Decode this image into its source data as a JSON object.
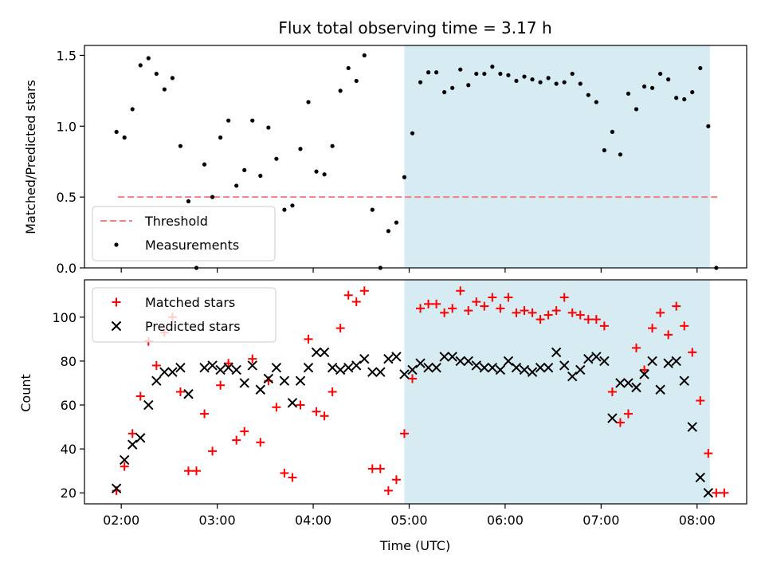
{
  "chart_data": [
    {
      "type": "scatter",
      "title": "Flux total observing time = 3.17 h",
      "xlabel": "",
      "ylabel": "Matched/Predicted stars",
      "ylim": [
        0,
        1.57
      ],
      "yticks": [
        0.0,
        0.5,
        1.0,
        1.5
      ],
      "ytick_labels": [
        "0.0",
        "0.5",
        "1.0",
        "1.5"
      ],
      "shaded_span": {
        "start": "04:57",
        "end": "08:08",
        "color": "#add8e6"
      },
      "threshold": {
        "name": "Threshold",
        "value": 0.5,
        "start": "01:58",
        "end": "08:13",
        "color": "#f08080"
      },
      "legend_location": "lower-left",
      "series": [
        {
          "name": "Measurements",
          "color": "#000000",
          "marker": "dot",
          "points": [
            [
              "01:57",
              0.96
            ],
            [
              "02:02",
              0.92
            ],
            [
              "02:07",
              1.12
            ],
            [
              "02:12",
              1.43
            ],
            [
              "02:17",
              1.48
            ],
            [
              "02:22",
              1.37
            ],
            [
              "02:27",
              1.26
            ],
            [
              "02:32",
              1.34
            ],
            [
              "02:37",
              0.86
            ],
            [
              "02:42",
              0.47
            ],
            [
              "02:47",
              0.0
            ],
            [
              "02:52",
              0.73
            ],
            [
              "02:57",
              0.5
            ],
            [
              "03:02",
              0.92
            ],
            [
              "03:07",
              1.04
            ],
            [
              "03:12",
              0.58
            ],
            [
              "03:17",
              0.69
            ],
            [
              "03:22",
              1.04
            ],
            [
              "03:27",
              0.65
            ],
            [
              "03:32",
              0.99
            ],
            [
              "03:37",
              0.77
            ],
            [
              "03:42",
              0.41
            ],
            [
              "03:47",
              0.44
            ],
            [
              "03:52",
              0.84
            ],
            [
              "03:57",
              1.17
            ],
            [
              "04:02",
              0.68
            ],
            [
              "04:07",
              0.66
            ],
            [
              "04:12",
              0.86
            ],
            [
              "04:17",
              1.25
            ],
            [
              "04:22",
              1.41
            ],
            [
              "04:27",
              1.32
            ],
            [
              "04:32",
              1.5
            ],
            [
              "04:37",
              0.41
            ],
            [
              "04:42",
              0.0
            ],
            [
              "04:47",
              0.26
            ],
            [
              "04:52",
              0.32
            ],
            [
              "04:57",
              0.64
            ],
            [
              "05:02",
              0.95
            ],
            [
              "05:07",
              1.31
            ],
            [
              "05:12",
              1.38
            ],
            [
              "05:17",
              1.38
            ],
            [
              "05:22",
              1.24
            ],
            [
              "05:27",
              1.27
            ],
            [
              "05:32",
              1.4
            ],
            [
              "05:37",
              1.29
            ],
            [
              "05:42",
              1.37
            ],
            [
              "05:47",
              1.37
            ],
            [
              "05:52",
              1.42
            ],
            [
              "05:57",
              1.37
            ],
            [
              "06:02",
              1.36
            ],
            [
              "06:07",
              1.32
            ],
            [
              "06:12",
              1.35
            ],
            [
              "06:17",
              1.33
            ],
            [
              "06:22",
              1.31
            ],
            [
              "06:27",
              1.34
            ],
            [
              "06:32",
              1.3
            ],
            [
              "06:37",
              1.31
            ],
            [
              "06:42",
              1.37
            ],
            [
              "06:47",
              1.3
            ],
            [
              "06:52",
              1.22
            ],
            [
              "06:57",
              1.17
            ],
            [
              "07:02",
              0.83
            ],
            [
              "07:07",
              0.96
            ],
            [
              "07:12",
              0.8
            ],
            [
              "07:17",
              1.23
            ],
            [
              "07:22",
              1.12
            ],
            [
              "07:27",
              1.28
            ],
            [
              "07:32",
              1.27
            ],
            [
              "07:37",
              1.37
            ],
            [
              "07:42",
              1.33
            ],
            [
              "07:47",
              1.2
            ],
            [
              "07:52",
              1.19
            ],
            [
              "07:57",
              1.24
            ],
            [
              "08:02",
              1.41
            ],
            [
              "08:07",
              1.0
            ],
            [
              "08:12",
              0.0
            ]
          ]
        }
      ]
    },
    {
      "type": "scatter",
      "title": "",
      "xlabel": "Time (UTC)",
      "ylabel": "Count",
      "ylim": [
        15,
        117
      ],
      "yticks": [
        20,
        40,
        60,
        80,
        100
      ],
      "ytick_labels": [
        "20",
        "40",
        "60",
        "80",
        "100"
      ],
      "xlim": [
        "01:37",
        "08:31"
      ],
      "xticks": [
        "02:00",
        "03:00",
        "04:00",
        "05:00",
        "06:00",
        "07:00",
        "08:00"
      ],
      "shaded_span": {
        "start": "04:57",
        "end": "08:08",
        "color": "#add8e6"
      },
      "legend_location": "upper-left",
      "series": [
        {
          "name": "Matched stars",
          "color": "#ff0000",
          "marker": "plus",
          "points": [
            [
              "01:57",
              21
            ],
            [
              "02:02",
              32
            ],
            [
              "02:07",
              47
            ],
            [
              "02:12",
              64
            ],
            [
              "02:17",
              89
            ],
            [
              "02:22",
              78
            ],
            [
              "02:27",
              93
            ],
            [
              "02:32",
              100
            ],
            [
              "02:37",
              66
            ],
            [
              "02:42",
              30
            ],
            [
              "02:47",
              30
            ],
            [
              "02:52",
              56
            ],
            [
              "02:57",
              39
            ],
            [
              "03:02",
              69
            ],
            [
              "03:07",
              79
            ],
            [
              "03:12",
              44
            ],
            [
              "03:17",
              48
            ],
            [
              "03:22",
              81
            ],
            [
              "03:27",
              43
            ],
            [
              "03:32",
              71
            ],
            [
              "03:37",
              59
            ],
            [
              "03:42",
              29
            ],
            [
              "03:47",
              27
            ],
            [
              "03:52",
              60
            ],
            [
              "03:57",
              90
            ],
            [
              "04:02",
              57
            ],
            [
              "04:07",
              55
            ],
            [
              "04:12",
              66
            ],
            [
              "04:17",
              95
            ],
            [
              "04:22",
              110
            ],
            [
              "04:27",
              107
            ],
            [
              "04:32",
              112
            ],
            [
              "04:37",
              31
            ],
            [
              "04:42",
              31
            ],
            [
              "04:47",
              21
            ],
            [
              "04:52",
              26
            ],
            [
              "04:57",
              47
            ],
            [
              "05:02",
              72
            ],
            [
              "05:07",
              104
            ],
            [
              "05:12",
              106
            ],
            [
              "05:17",
              106
            ],
            [
              "05:22",
              102
            ],
            [
              "05:27",
              104
            ],
            [
              "05:32",
              112
            ],
            [
              "05:37",
              103
            ],
            [
              "05:42",
              107
            ],
            [
              "05:47",
              105
            ],
            [
              "05:52",
              109
            ],
            [
              "05:57",
              104
            ],
            [
              "06:02",
              109
            ],
            [
              "06:07",
              102
            ],
            [
              "06:12",
              103
            ],
            [
              "06:17",
              102
            ],
            [
              "06:22",
              99
            ],
            [
              "06:27",
              101
            ],
            [
              "06:32",
              103
            ],
            [
              "06:37",
              109
            ],
            [
              "06:42",
              102
            ],
            [
              "06:47",
              101
            ],
            [
              "06:52",
              99
            ],
            [
              "06:57",
              99
            ],
            [
              "07:02",
              96
            ],
            [
              "07:07",
              66
            ],
            [
              "07:12",
              52
            ],
            [
              "07:17",
              56
            ],
            [
              "07:22",
              86
            ],
            [
              "07:27",
              76
            ],
            [
              "07:32",
              95
            ],
            [
              "07:37",
              102
            ],
            [
              "07:42",
              92
            ],
            [
              "07:47",
              105
            ],
            [
              "07:52",
              96
            ],
            [
              "07:57",
              84
            ],
            [
              "08:02",
              62
            ],
            [
              "08:07",
              38
            ],
            [
              "08:12",
              20
            ],
            [
              "08:17",
              20
            ]
          ]
        },
        {
          "name": "Predicted stars",
          "color": "#000000",
          "marker": "x",
          "points": [
            [
              "01:57",
              22
            ],
            [
              "02:02",
              35
            ],
            [
              "02:07",
              42
            ],
            [
              "02:12",
              45
            ],
            [
              "02:17",
              60
            ],
            [
              "02:22",
              71
            ],
            [
              "02:27",
              75
            ],
            [
              "02:32",
              75
            ],
            [
              "02:37",
              77
            ],
            [
              "02:42",
              65
            ],
            [
              "02:52",
              77
            ],
            [
              "02:57",
              78
            ],
            [
              "03:02",
              76
            ],
            [
              "03:07",
              77
            ],
            [
              "03:12",
              76
            ],
            [
              "03:17",
              70
            ],
            [
              "03:22",
              78
            ],
            [
              "03:27",
              67
            ],
            [
              "03:32",
              72
            ],
            [
              "03:37",
              77
            ],
            [
              "03:42",
              71
            ],
            [
              "03:47",
              61
            ],
            [
              "03:52",
              71
            ],
            [
              "03:57",
              77
            ],
            [
              "04:02",
              84
            ],
            [
              "04:07",
              84
            ],
            [
              "04:12",
              77
            ],
            [
              "04:17",
              76
            ],
            [
              "04:22",
              77
            ],
            [
              "04:27",
              78
            ],
            [
              "04:32",
              81
            ],
            [
              "04:37",
              75
            ],
            [
              "04:42",
              75
            ],
            [
              "04:47",
              81
            ],
            [
              "04:52",
              82
            ],
            [
              "04:57",
              74
            ],
            [
              "05:02",
              76
            ],
            [
              "05:07",
              79
            ],
            [
              "05:12",
              77
            ],
            [
              "05:17",
              77
            ],
            [
              "05:22",
              82
            ],
            [
              "05:27",
              82
            ],
            [
              "05:32",
              80
            ],
            [
              "05:37",
              80
            ],
            [
              "05:42",
              78
            ],
            [
              "05:47",
              77
            ],
            [
              "05:52",
              77
            ],
            [
              "05:57",
              76
            ],
            [
              "06:02",
              80
            ],
            [
              "06:07",
              77
            ],
            [
              "06:12",
              76
            ],
            [
              "06:17",
              75
            ],
            [
              "06:22",
              77
            ],
            [
              "06:27",
              77
            ],
            [
              "06:32",
              84
            ],
            [
              "06:37",
              78
            ],
            [
              "06:42",
              73
            ],
            [
              "06:47",
              76
            ],
            [
              "06:52",
              81
            ],
            [
              "06:57",
              82
            ],
            [
              "07:02",
              80
            ],
            [
              "07:07",
              54
            ],
            [
              "07:12",
              70
            ],
            [
              "07:17",
              70
            ],
            [
              "07:22",
              68
            ],
            [
              "07:27",
              74
            ],
            [
              "07:32",
              80
            ],
            [
              "07:37",
              67
            ],
            [
              "07:42",
              79
            ],
            [
              "07:47",
              80
            ],
            [
              "07:52",
              71
            ],
            [
              "07:57",
              50
            ],
            [
              "08:02",
              27
            ],
            [
              "08:07",
              20
            ]
          ]
        }
      ]
    }
  ]
}
